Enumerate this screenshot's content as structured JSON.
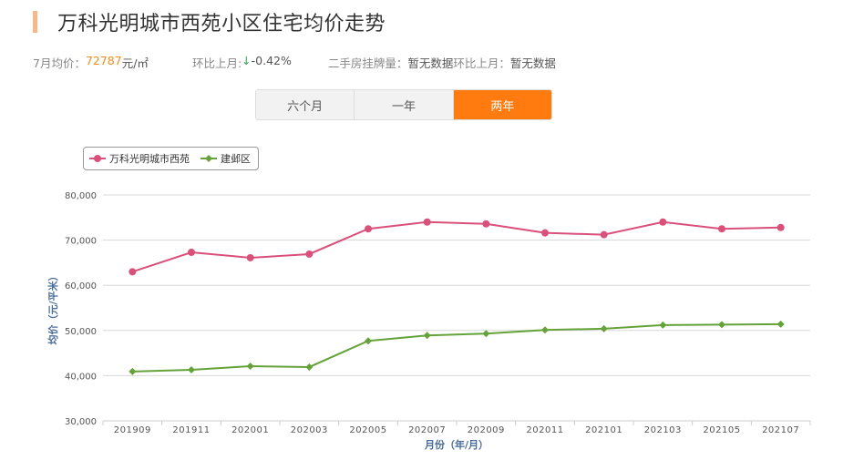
{
  "header": {
    "title": "万科光明城市西苑小区住宅均价走势",
    "accent_color": "#f5b88a"
  },
  "stats": {
    "avg_label": "7月均价：",
    "avg_value": "72787",
    "avg_unit": "元/㎡",
    "mom_label": "环比上月: ",
    "mom_arrow": "↓",
    "mom_value": " -0.42%",
    "listing_label": "二手房挂牌量：",
    "listing_value": " 暂无数据",
    "listing_mom_label": " 环比上月：",
    "listing_mom_value": " 暂无数据"
  },
  "tabs": [
    {
      "label": "六个月",
      "active": false
    },
    {
      "label": "一年",
      "active": false
    },
    {
      "label": "两年",
      "active": true
    }
  ],
  "legend": [
    {
      "label": "万科光明城市西苑",
      "color": "#d9507a",
      "marker": "circle"
    },
    {
      "label": "建邺区",
      "color": "#65a33a",
      "marker": "diamond"
    }
  ],
  "chart_data": {
    "type": "line",
    "title": "",
    "xlabel": "月份（年/月）",
    "ylabel": "均价（元/平米）",
    "ylim": [
      30000,
      80000
    ],
    "yticks": [
      "30,000",
      "40,000",
      "50,000",
      "60,000",
      "70,000",
      "80,000"
    ],
    "grid": true,
    "legend_position": "top-left",
    "categories": [
      "201909",
      "201911",
      "202001",
      "202003",
      "202005",
      "202007",
      "202009",
      "202011",
      "202101",
      "202103",
      "202105",
      "202107"
    ],
    "series": [
      {
        "name": "万科光明城市西苑",
        "color": "#d9507a",
        "values": [
          63000,
          67300,
          66100,
          66900,
          72500,
          74000,
          73600,
          71600,
          71200,
          74000,
          72500,
          72787
        ]
      },
      {
        "name": "建邺区",
        "color": "#65a33a",
        "values": [
          40900,
          41300,
          42100,
          41900,
          47700,
          48900,
          49300,
          50100,
          50400,
          51200,
          51300,
          51400
        ]
      }
    ]
  }
}
